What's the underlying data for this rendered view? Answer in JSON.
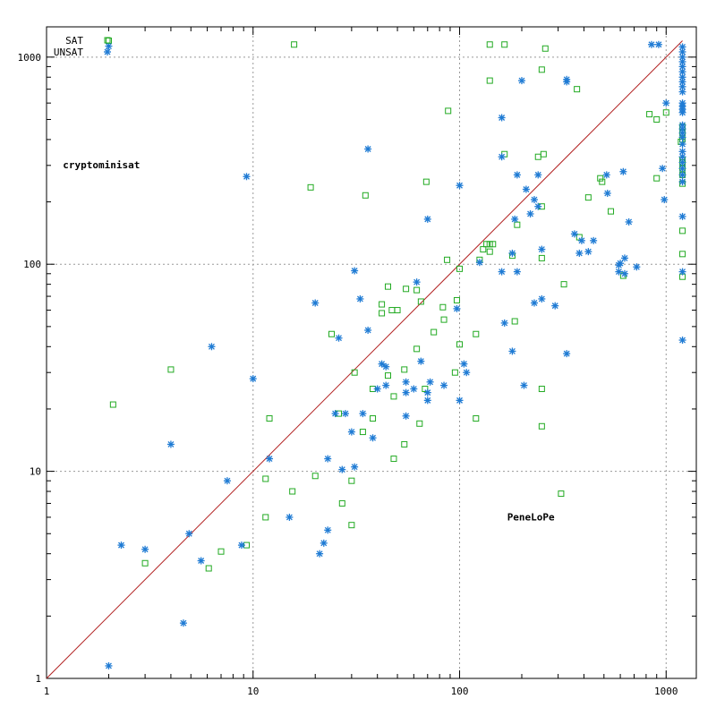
{
  "chart_data": {
    "type": "scatter",
    "x_scale": "log",
    "y_scale": "log",
    "xlim": [
      1,
      1400
    ],
    "ylim": [
      1,
      1400
    ],
    "grid": true,
    "x_ticks": [
      {
        "value": 1,
        "label": "1"
      },
      {
        "value": 10,
        "label": "10"
      },
      {
        "value": 100,
        "label": "100"
      },
      {
        "value": 1000,
        "label": "1000"
      }
    ],
    "y_ticks": [
      {
        "value": 1,
        "label": "1"
      },
      {
        "value": 10,
        "label": "10"
      },
      {
        "value": 100,
        "label": "100"
      },
      {
        "value": 1000,
        "label": "1000"
      }
    ],
    "diagonal": {
      "from": [
        1,
        1
      ],
      "to": [
        1200,
        1200
      ],
      "color": "#b22222"
    },
    "annotations": [
      {
        "text": "cryptominisat",
        "x": 1.2,
        "y": 290
      },
      {
        "text": "PeneLoPe",
        "x": 170,
        "y": 5.8
      }
    ],
    "legend_position": "top-left",
    "series": [
      {
        "name": "SAT",
        "marker": "square",
        "color": "#22aa22",
        "points": [
          [
            2.0,
            1200
          ],
          [
            15.8,
            1150
          ],
          [
            140,
            1150
          ],
          [
            165,
            1150
          ],
          [
            260,
            1100
          ],
          [
            250,
            870
          ],
          [
            140,
            770
          ],
          [
            370,
            700
          ],
          [
            88,
            550
          ],
          [
            830,
            530
          ],
          [
            1000,
            540
          ],
          [
            900,
            500
          ],
          [
            1200,
            460
          ],
          [
            1200,
            430
          ],
          [
            1200,
            400
          ],
          [
            1180,
            390
          ],
          [
            165,
            340
          ],
          [
            255,
            340
          ],
          [
            240,
            330
          ],
          [
            1200,
            320
          ],
          [
            1200,
            310
          ],
          [
            1200,
            290
          ],
          [
            1200,
            270
          ],
          [
            480,
            260
          ],
          [
            900,
            260
          ],
          [
            490,
            250
          ],
          [
            1200,
            245
          ],
          [
            69,
            250
          ],
          [
            19,
            235
          ],
          [
            35,
            215
          ],
          [
            420,
            210
          ],
          [
            250,
            190
          ],
          [
            540,
            180
          ],
          [
            190,
            155
          ],
          [
            1200,
            145
          ],
          [
            380,
            135
          ],
          [
            145,
            125
          ],
          [
            140,
            125
          ],
          [
            135,
            125
          ],
          [
            130,
            118
          ],
          [
            140,
            115
          ],
          [
            180,
            110
          ],
          [
            1200,
            112
          ],
          [
            250,
            107
          ],
          [
            125,
            105
          ],
          [
            87,
            105
          ],
          [
            100,
            95
          ],
          [
            1200,
            87
          ],
          [
            620,
            88
          ],
          [
            320,
            80
          ],
          [
            45,
            78
          ],
          [
            55,
            76
          ],
          [
            62,
            75
          ],
          [
            65,
            66
          ],
          [
            42,
            64
          ],
          [
            97,
            67
          ],
          [
            83,
            62
          ],
          [
            47,
            60
          ],
          [
            50,
            60
          ],
          [
            42,
            58
          ],
          [
            84,
            54
          ],
          [
            185,
            53
          ],
          [
            75,
            47
          ],
          [
            24,
            46
          ],
          [
            120,
            46
          ],
          [
            100,
            41
          ],
          [
            62,
            39
          ],
          [
            4.0,
            31
          ],
          [
            31,
            30
          ],
          [
            95,
            30
          ],
          [
            54,
            31
          ],
          [
            45,
            29
          ],
          [
            38,
            25
          ],
          [
            68,
            25
          ],
          [
            250,
            25
          ],
          [
            48,
            23
          ],
          [
            2.1,
            21
          ],
          [
            26,
            19
          ],
          [
            38,
            18
          ],
          [
            12,
            18
          ],
          [
            120,
            18
          ],
          [
            64,
            17
          ],
          [
            250,
            16.5
          ],
          [
            34,
            15.5
          ],
          [
            54,
            13.5
          ],
          [
            48,
            11.5
          ],
          [
            20,
            9.5
          ],
          [
            11.5,
            9.2
          ],
          [
            30,
            9.0
          ],
          [
            15.5,
            8.0
          ],
          [
            310,
            7.8
          ],
          [
            27,
            7.0
          ],
          [
            11.5,
            6.0
          ],
          [
            30,
            5.5
          ],
          [
            9.3,
            4.4
          ],
          [
            7.0,
            4.1
          ],
          [
            3.0,
            3.6
          ],
          [
            6.1,
            3.4
          ]
        ]
      },
      {
        "name": "UNSAT",
        "marker": "star",
        "color": "#1f7bd4",
        "points": [
          [
            2.0,
            1130
          ],
          [
            850,
            1150
          ],
          [
            920,
            1150
          ],
          [
            1200,
            1120
          ],
          [
            1200,
            1060
          ],
          [
            1200,
            1000
          ],
          [
            1200,
            950
          ],
          [
            1200,
            900
          ],
          [
            1200,
            850
          ],
          [
            1200,
            800
          ],
          [
            1200,
            760
          ],
          [
            1200,
            720
          ],
          [
            1200,
            680
          ],
          [
            330,
            780
          ],
          [
            200,
            770
          ],
          [
            330,
            760
          ],
          [
            1000,
            600
          ],
          [
            1200,
            600
          ],
          [
            1200,
            580
          ],
          [
            1200,
            560
          ],
          [
            1200,
            540
          ],
          [
            160,
            510
          ],
          [
            1200,
            470
          ],
          [
            1200,
            450
          ],
          [
            1200,
            430
          ],
          [
            1200,
            410
          ],
          [
            1200,
            380
          ],
          [
            1200,
            350
          ],
          [
            1200,
            330
          ],
          [
            1200,
            310
          ],
          [
            36,
            360
          ],
          [
            160,
            330
          ],
          [
            1200,
            290
          ],
          [
            1200,
            270
          ],
          [
            1200,
            250
          ],
          [
            9.3,
            265
          ],
          [
            960,
            290
          ],
          [
            620,
            280
          ],
          [
            190,
            270
          ],
          [
            240,
            270
          ],
          [
            515,
            270
          ],
          [
            100,
            240
          ],
          [
            210,
            230
          ],
          [
            520,
            220
          ],
          [
            230,
            205
          ],
          [
            980,
            205
          ],
          [
            240,
            190
          ],
          [
            220,
            175
          ],
          [
            70,
            165
          ],
          [
            185,
            165
          ],
          [
            1200,
            170
          ],
          [
            660,
            160
          ],
          [
            360,
            140
          ],
          [
            445,
            130
          ],
          [
            390,
            130
          ],
          [
            250,
            118
          ],
          [
            180,
            113
          ],
          [
            420,
            115
          ],
          [
            380,
            113
          ],
          [
            630,
            107
          ],
          [
            600,
            101
          ],
          [
            590,
            99
          ],
          [
            720,
            97
          ],
          [
            125,
            102
          ],
          [
            160,
            92
          ],
          [
            190,
            92
          ],
          [
            31,
            93
          ],
          [
            590,
            92
          ],
          [
            1200,
            92
          ],
          [
            630,
            90
          ],
          [
            62,
            82
          ],
          [
            33,
            68
          ],
          [
            250,
            68
          ],
          [
            230,
            65
          ],
          [
            290,
            63
          ],
          [
            20,
            65
          ],
          [
            97,
            61
          ],
          [
            165,
            52
          ],
          [
            36,
            48
          ],
          [
            26,
            44
          ],
          [
            1200,
            43
          ],
          [
            6.3,
            40
          ],
          [
            180,
            38
          ],
          [
            330,
            37
          ],
          [
            65,
            34
          ],
          [
            105,
            33
          ],
          [
            42,
            33
          ],
          [
            44,
            32
          ],
          [
            108,
            30
          ],
          [
            10,
            28
          ],
          [
            72,
            27
          ],
          [
            55,
            27
          ],
          [
            205,
            26
          ],
          [
            84,
            26
          ],
          [
            60,
            25
          ],
          [
            44,
            26
          ],
          [
            70,
            24
          ],
          [
            40,
            25
          ],
          [
            55,
            24
          ],
          [
            100,
            22
          ],
          [
            70,
            22
          ],
          [
            25,
            19
          ],
          [
            28,
            19
          ],
          [
            34,
            19
          ],
          [
            55,
            18.5
          ],
          [
            38,
            14.5
          ],
          [
            30,
            15.5
          ],
          [
            4.0,
            13.5
          ],
          [
            12,
            11.5
          ],
          [
            23,
            11.5
          ],
          [
            31,
            10.5
          ],
          [
            27,
            10.2
          ],
          [
            7.5,
            9.0
          ],
          [
            15,
            6.0
          ],
          [
            4.9,
            5.0
          ],
          [
            23,
            5.2
          ],
          [
            2.3,
            4.4
          ],
          [
            3.0,
            4.2
          ],
          [
            8.8,
            4.4
          ],
          [
            22,
            4.5
          ],
          [
            21,
            4.0
          ],
          [
            5.6,
            3.7
          ],
          [
            4.6,
            1.85
          ],
          [
            2.0,
            1.15
          ]
        ]
      }
    ]
  }
}
